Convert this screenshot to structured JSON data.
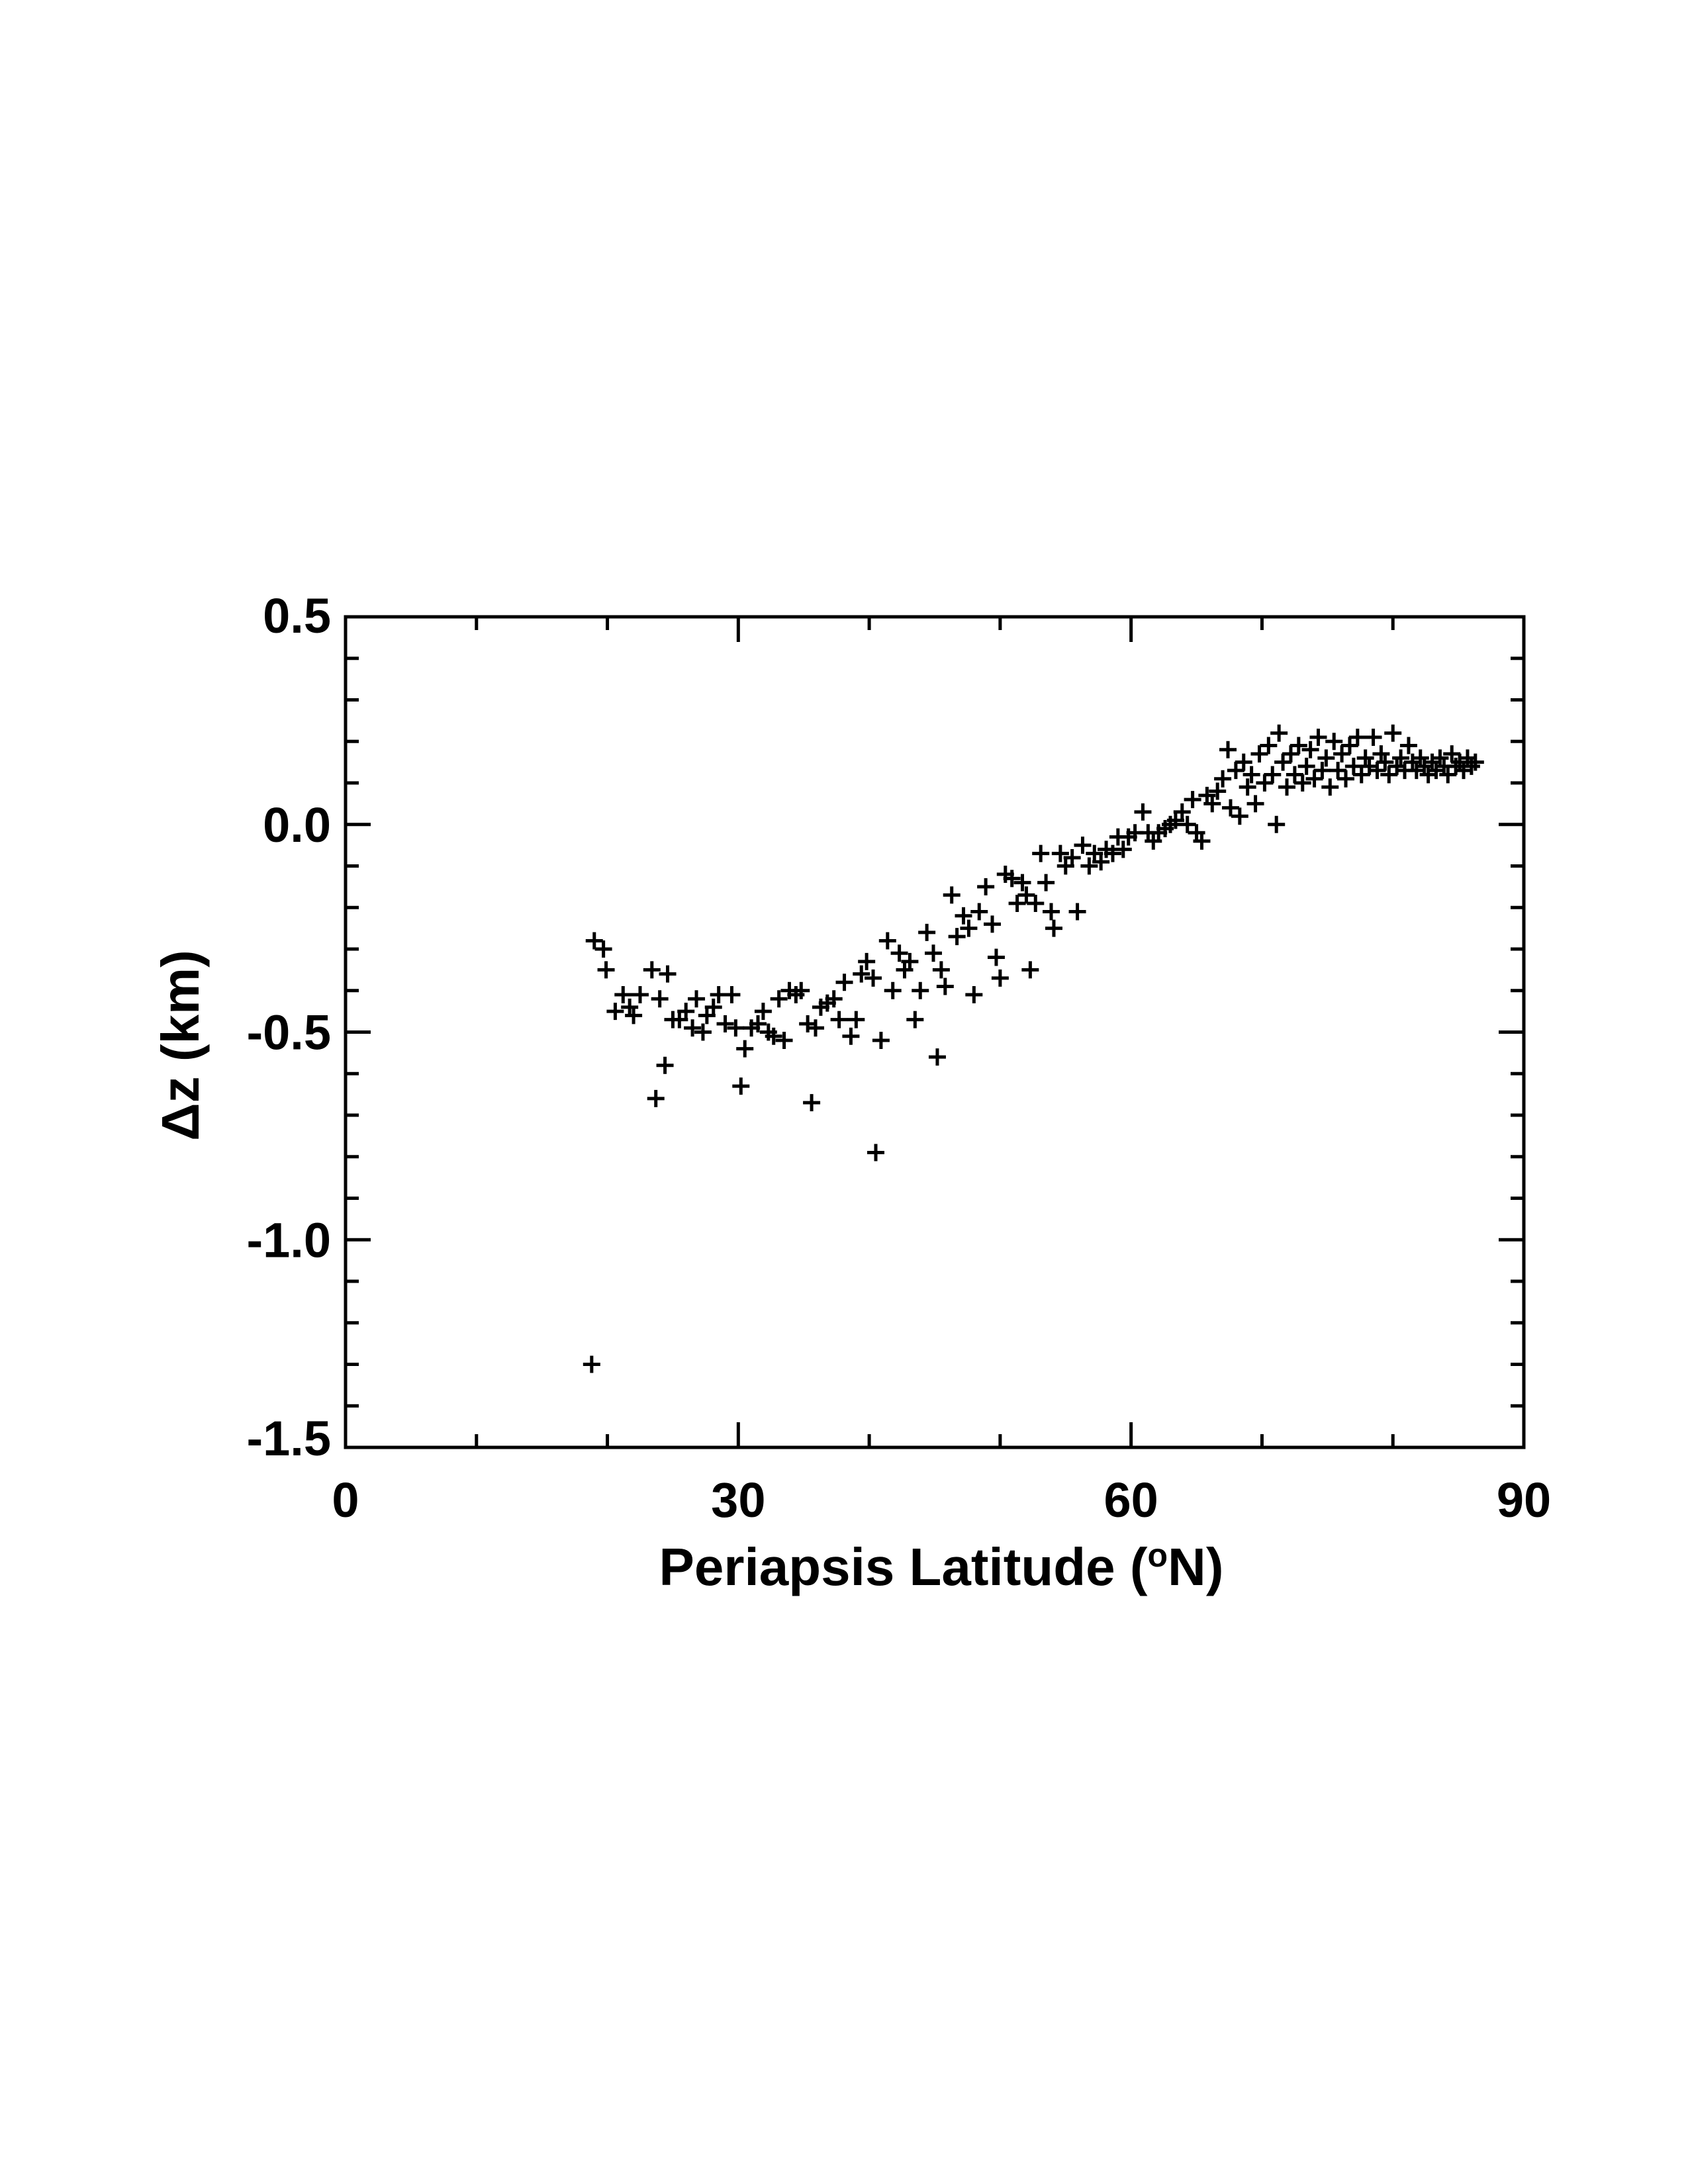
{
  "chart_data": {
    "type": "scatter",
    "marker": "plus",
    "xlabel": "Periapsis Latitude (",
    "xlabel_sup": "o",
    "xlabel_tail": "N)",
    "ylabel": "Δz (km)",
    "xlim": [
      0,
      90
    ],
    "ylim": [
      -1.5,
      0.5
    ],
    "x_ticks": [
      0,
      30,
      60,
      90
    ],
    "x_tick_labels": [
      "0",
      "30",
      "60",
      "90"
    ],
    "y_ticks": [
      0.5,
      0.0,
      -0.5,
      -1.0,
      -1.5
    ],
    "y_tick_labels": [
      "0.5",
      "0.0",
      "-0.5",
      "-1.0",
      "-1.5"
    ],
    "x_minor_step": 10,
    "y_minor_step": 0.1,
    "grid": false,
    "series": [
      {
        "color": "#000000",
        "points": [
          [
            18.8,
            -1.3
          ],
          [
            19.0,
            -0.28
          ],
          [
            19.7,
            -0.3
          ],
          [
            19.9,
            -0.35
          ],
          [
            20.6,
            -0.45
          ],
          [
            21.2,
            -0.41
          ],
          [
            21.7,
            -0.44
          ],
          [
            22.0,
            -0.46
          ],
          [
            22.5,
            -0.41
          ],
          [
            23.4,
            -0.35
          ],
          [
            23.7,
            -0.66
          ],
          [
            24.0,
            -0.42
          ],
          [
            24.4,
            -0.58
          ],
          [
            24.6,
            -0.36
          ],
          [
            25.0,
            -0.47
          ],
          [
            25.5,
            -0.47
          ],
          [
            26.0,
            -0.45
          ],
          [
            26.5,
            -0.49
          ],
          [
            26.8,
            -0.42
          ],
          [
            27.3,
            -0.5
          ],
          [
            27.6,
            -0.46
          ],
          [
            28.1,
            -0.44
          ],
          [
            28.5,
            -0.41
          ],
          [
            29.0,
            -0.48
          ],
          [
            29.5,
            -0.41
          ],
          [
            29.8,
            -0.49
          ],
          [
            30.2,
            -0.63
          ],
          [
            30.5,
            -0.54
          ],
          [
            31.0,
            -0.49
          ],
          [
            31.5,
            -0.48
          ],
          [
            31.9,
            -0.45
          ],
          [
            32.3,
            -0.5
          ],
          [
            32.7,
            -0.51
          ],
          [
            33.1,
            -0.42
          ],
          [
            33.5,
            -0.52
          ],
          [
            33.9,
            -0.4
          ],
          [
            34.4,
            -0.41
          ],
          [
            34.8,
            -0.4
          ],
          [
            35.3,
            -0.48
          ],
          [
            35.6,
            -0.67
          ],
          [
            35.9,
            -0.49
          ],
          [
            36.3,
            -0.44
          ],
          [
            36.8,
            -0.43
          ],
          [
            37.3,
            -0.42
          ],
          [
            37.7,
            -0.47
          ],
          [
            38.1,
            -0.38
          ],
          [
            38.6,
            -0.51
          ],
          [
            39.0,
            -0.47
          ],
          [
            39.4,
            -0.36
          ],
          [
            39.8,
            -0.33
          ],
          [
            40.3,
            -0.37
          ],
          [
            40.5,
            -0.79
          ],
          [
            40.9,
            -0.52
          ],
          [
            41.4,
            -0.28
          ],
          [
            41.8,
            -0.4
          ],
          [
            42.3,
            -0.31
          ],
          [
            42.7,
            -0.35
          ],
          [
            43.1,
            -0.33
          ],
          [
            43.5,
            -0.47
          ],
          [
            43.9,
            -0.4
          ],
          [
            44.4,
            -0.26
          ],
          [
            44.9,
            -0.31
          ],
          [
            45.2,
            -0.56
          ],
          [
            45.5,
            -0.35
          ],
          [
            45.8,
            -0.39
          ],
          [
            46.3,
            -0.17
          ],
          [
            46.7,
            -0.27
          ],
          [
            47.2,
            -0.22
          ],
          [
            47.6,
            -0.25
          ],
          [
            48.0,
            -0.41
          ],
          [
            48.4,
            -0.21
          ],
          [
            48.9,
            -0.15
          ],
          [
            49.4,
            -0.24
          ],
          [
            49.7,
            -0.32
          ],
          [
            50.0,
            -0.37
          ],
          [
            50.4,
            -0.12
          ],
          [
            50.9,
            -0.13
          ],
          [
            51.3,
            -0.19
          ],
          [
            51.7,
            -0.14
          ],
          [
            52.0,
            -0.17
          ],
          [
            52.3,
            -0.35
          ],
          [
            52.7,
            -0.19
          ],
          [
            53.1,
            -0.07
          ],
          [
            53.5,
            -0.14
          ],
          [
            53.9,
            -0.21
          ],
          [
            54.1,
            -0.25
          ],
          [
            54.6,
            -0.07
          ],
          [
            55.0,
            -0.1
          ],
          [
            55.5,
            -0.08
          ],
          [
            55.9,
            -0.21
          ],
          [
            56.3,
            -0.05
          ],
          [
            56.8,
            -0.1
          ],
          [
            57.2,
            -0.07
          ],
          [
            57.7,
            -0.09
          ],
          [
            58.1,
            -0.06
          ],
          [
            58.6,
            -0.07
          ],
          [
            59.0,
            -0.03
          ],
          [
            59.4,
            -0.06
          ],
          [
            59.8,
            -0.03
          ],
          [
            60.3,
            -0.02
          ],
          [
            60.9,
            0.03
          ],
          [
            61.3,
            -0.02
          ],
          [
            61.7,
            -0.04
          ],
          [
            62.1,
            -0.02
          ],
          [
            62.6,
            -0.01
          ],
          [
            63.0,
            0.0
          ],
          [
            63.4,
            0.01
          ],
          [
            63.9,
            0.03
          ],
          [
            64.3,
            0.0
          ],
          [
            64.7,
            0.06
          ],
          [
            65.0,
            -0.02
          ],
          [
            65.4,
            -0.04
          ],
          [
            65.8,
            0.07
          ],
          [
            66.2,
            0.05
          ],
          [
            66.6,
            0.08
          ],
          [
            67.0,
            0.11
          ],
          [
            67.4,
            0.18
          ],
          [
            67.6,
            0.04
          ],
          [
            68.0,
            0.13
          ],
          [
            68.3,
            0.02
          ],
          [
            68.6,
            0.15
          ],
          [
            68.9,
            0.09
          ],
          [
            69.2,
            0.12
          ],
          [
            69.5,
            0.05
          ],
          [
            69.8,
            0.17
          ],
          [
            70.2,
            0.1
          ],
          [
            70.5,
            0.19
          ],
          [
            70.8,
            0.12
          ],
          [
            71.1,
            0.0
          ],
          [
            71.3,
            0.22
          ],
          [
            71.6,
            0.15
          ],
          [
            71.9,
            0.09
          ],
          [
            72.2,
            0.17
          ],
          [
            72.5,
            0.12
          ],
          [
            72.8,
            0.19
          ],
          [
            73.1,
            0.1
          ],
          [
            73.4,
            0.14
          ],
          [
            73.7,
            0.18
          ],
          [
            74.0,
            0.11
          ],
          [
            74.3,
            0.21
          ],
          [
            74.6,
            0.13
          ],
          [
            74.9,
            0.16
          ],
          [
            75.2,
            0.09
          ],
          [
            75.5,
            0.2
          ],
          [
            75.8,
            0.13
          ],
          [
            76.1,
            0.17
          ],
          [
            76.4,
            0.11
          ],
          [
            76.7,
            0.19
          ],
          [
            77.0,
            0.14
          ],
          [
            77.3,
            0.21
          ],
          [
            77.6,
            0.12
          ],
          [
            77.9,
            0.16
          ],
          [
            78.2,
            0.14
          ],
          [
            78.5,
            0.21
          ],
          [
            78.8,
            0.13
          ],
          [
            79.1,
            0.17
          ],
          [
            79.4,
            0.15
          ],
          [
            79.7,
            0.12
          ],
          [
            80.0,
            0.22
          ],
          [
            80.3,
            0.14
          ],
          [
            80.6,
            0.16
          ],
          [
            80.9,
            0.13
          ],
          [
            81.2,
            0.19
          ],
          [
            81.5,
            0.15
          ],
          [
            81.8,
            0.13
          ],
          [
            82.1,
            0.16
          ],
          [
            82.4,
            0.14
          ],
          [
            82.7,
            0.12
          ],
          [
            83.0,
            0.15
          ],
          [
            83.3,
            0.13
          ],
          [
            83.6,
            0.16
          ],
          [
            83.9,
            0.14
          ],
          [
            84.2,
            0.12
          ],
          [
            84.5,
            0.17
          ],
          [
            84.8,
            0.14
          ],
          [
            85.1,
            0.15
          ],
          [
            85.4,
            0.13
          ],
          [
            85.7,
            0.16
          ],
          [
            86.0,
            0.14
          ],
          [
            86.3,
            0.15
          ]
        ]
      }
    ]
  }
}
